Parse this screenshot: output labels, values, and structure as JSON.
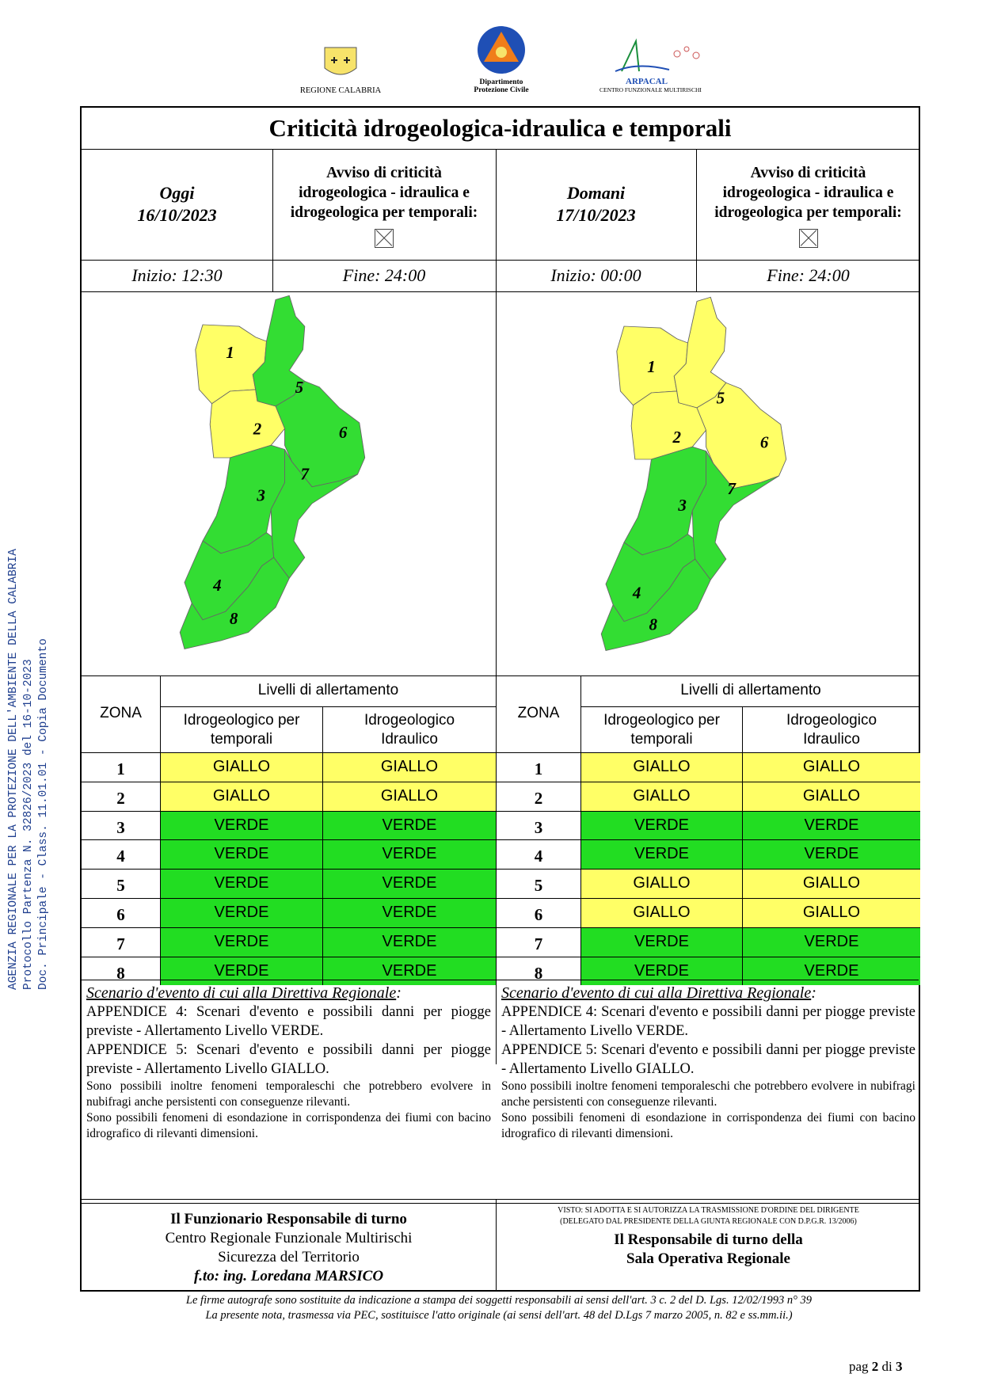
{
  "side_stamp": [
    "AGENZIA REGIONALE PER LA PROTEZIONE DELL'AMBIENTE DELLA CALABRIA",
    "Protocollo Partenza N. 32826/2023 del 16-10-2023",
    "Doc. Principale - Class. 11.01.01 - Copia Documento"
  ],
  "logos": {
    "regione": "REGIONE CALABRIA",
    "protezione_line1": "Dipartimento",
    "protezione_line2": "Protezione Civile",
    "arpacal_name": "ARPACAL",
    "arpacal_sub": "CENTRO FUNZIONALE MULTIRISCHI"
  },
  "title": "Criticità idrogeologica-idraulica e temporali",
  "days": [
    {
      "label": "Oggi",
      "date": "16/10/2023",
      "avviso": [
        "Avviso di criticità",
        "idrogeologica - idraulica e",
        "idrogeologica per temporali:"
      ],
      "start": "Inizio: 12:30",
      "end": "Fine: 24:00",
      "zone_colors": {
        "1": "#ffff66",
        "2": "#ffff66",
        "3": "#33dd33",
        "4": "#33dd33",
        "5": "#33dd33",
        "6": "#33dd33",
        "7": "#33dd33",
        "8": "#33dd33"
      },
      "zones": [
        {
          "n": "1",
          "temporali": "GIALLO",
          "idraulico": "GIALLO"
        },
        {
          "n": "2",
          "temporali": "GIALLO",
          "idraulico": "GIALLO"
        },
        {
          "n": "3",
          "temporali": "VERDE",
          "idraulico": "VERDE"
        },
        {
          "n": "4",
          "temporali": "VERDE",
          "idraulico": "VERDE"
        },
        {
          "n": "5",
          "temporali": "VERDE",
          "idraulico": "VERDE"
        },
        {
          "n": "6",
          "temporali": "VERDE",
          "idraulico": "VERDE"
        },
        {
          "n": "7",
          "temporali": "VERDE",
          "idraulico": "VERDE"
        },
        {
          "n": "8",
          "temporali": "VERDE",
          "idraulico": "VERDE"
        }
      ]
    },
    {
      "label": "Domani",
      "date": "17/10/2023",
      "avviso": [
        "Avviso di criticità",
        "idrogeologica - idraulica e",
        "idrogeologica per temporali:"
      ],
      "start": "Inizio: 00:00",
      "end": "Fine: 24:00",
      "zone_colors": {
        "1": "#ffff66",
        "2": "#ffff66",
        "3": "#33dd33",
        "4": "#33dd33",
        "5": "#ffff66",
        "6": "#ffff66",
        "7": "#33dd33",
        "8": "#33dd33"
      },
      "zones": [
        {
          "n": "1",
          "temporali": "GIALLO",
          "idraulico": "GIALLO"
        },
        {
          "n": "2",
          "temporali": "GIALLO",
          "idraulico": "GIALLO"
        },
        {
          "n": "3",
          "temporali": "VERDE",
          "idraulico": "VERDE"
        },
        {
          "n": "4",
          "temporali": "VERDE",
          "idraulico": "VERDE"
        },
        {
          "n": "5",
          "temporali": "GIALLO",
          "idraulico": "GIALLO"
        },
        {
          "n": "6",
          "temporali": "GIALLO",
          "idraulico": "GIALLO"
        },
        {
          "n": "7",
          "temporali": "VERDE",
          "idraulico": "VERDE"
        },
        {
          "n": "8",
          "temporali": "VERDE",
          "idraulico": "VERDE"
        }
      ]
    }
  ],
  "table_headers": {
    "zona": "ZONA",
    "livelli": "Livelli di allertamento",
    "col1": [
      "Idrogeologico per",
      "temporali"
    ],
    "col2": [
      "Idrogeologico",
      "Idraulico"
    ]
  },
  "level_colors": {
    "GIALLO": "#ffff66",
    "VERDE": "#22dd22"
  },
  "scenario": {
    "heading": "Scenario d'evento di cui alla Direttiva Regionale",
    "heading_suffix": ":",
    "app4": "APPENDICE 4: Scenari d'evento e possibili danni per piogge previste - Allertamento Livello VERDE.",
    "app5": "APPENDICE 5: Scenari d'evento e possibili danni per piogge previste - Allertamento Livello GIALLO.",
    "note1": "Sono possibili inoltre fenomeni temporaleschi che potrebbero evolvere in nubifragi anche persistenti con conseguenze rilevanti.",
    "note2": "Sono possibili fenomeni di esondazione in corrispondenza dei fiumi con bacino idrografico di rilevanti dimensioni."
  },
  "signature_left": {
    "line1": "Il Funzionario Responsabile di turno",
    "line2": "Centro Regionale Funzionale Multirischi",
    "line3": "Sicurezza del Territorio",
    "line4": "f.to: ing.  Loredana MARSICO"
  },
  "signature_right": {
    "small1": "VISTO: SI ADOTTA E SI AUTORIZZA LA TRASMISSIONE D'ORDINE DEL DIRIGENTE",
    "small2": "(DELEGATO DAL PRESIDENTE DELLA GIUNTA REGIONALE CON D.P.G.R. 13/2006)",
    "line1": "Il Responsabile di turno della",
    "line2": "Sala Operativa Regionale"
  },
  "footer": [
    "Le firme autografe sono sostituite da indicazione a stampa dei soggetti responsabili ai sensi dell'art. 3 c. 2 del D. Lgs. 12/02/1993 n° 39",
    "La presente nota, trasmessa via PEC, sostituisce l'atto originale (ai sensi dell'art. 48 del D.Lgs 7 marzo 2005, n. 82 e ss.mm.ii.)"
  ],
  "page": {
    "prefix": "pag ",
    "current": "2",
    "sep": " di ",
    "total": "3"
  }
}
